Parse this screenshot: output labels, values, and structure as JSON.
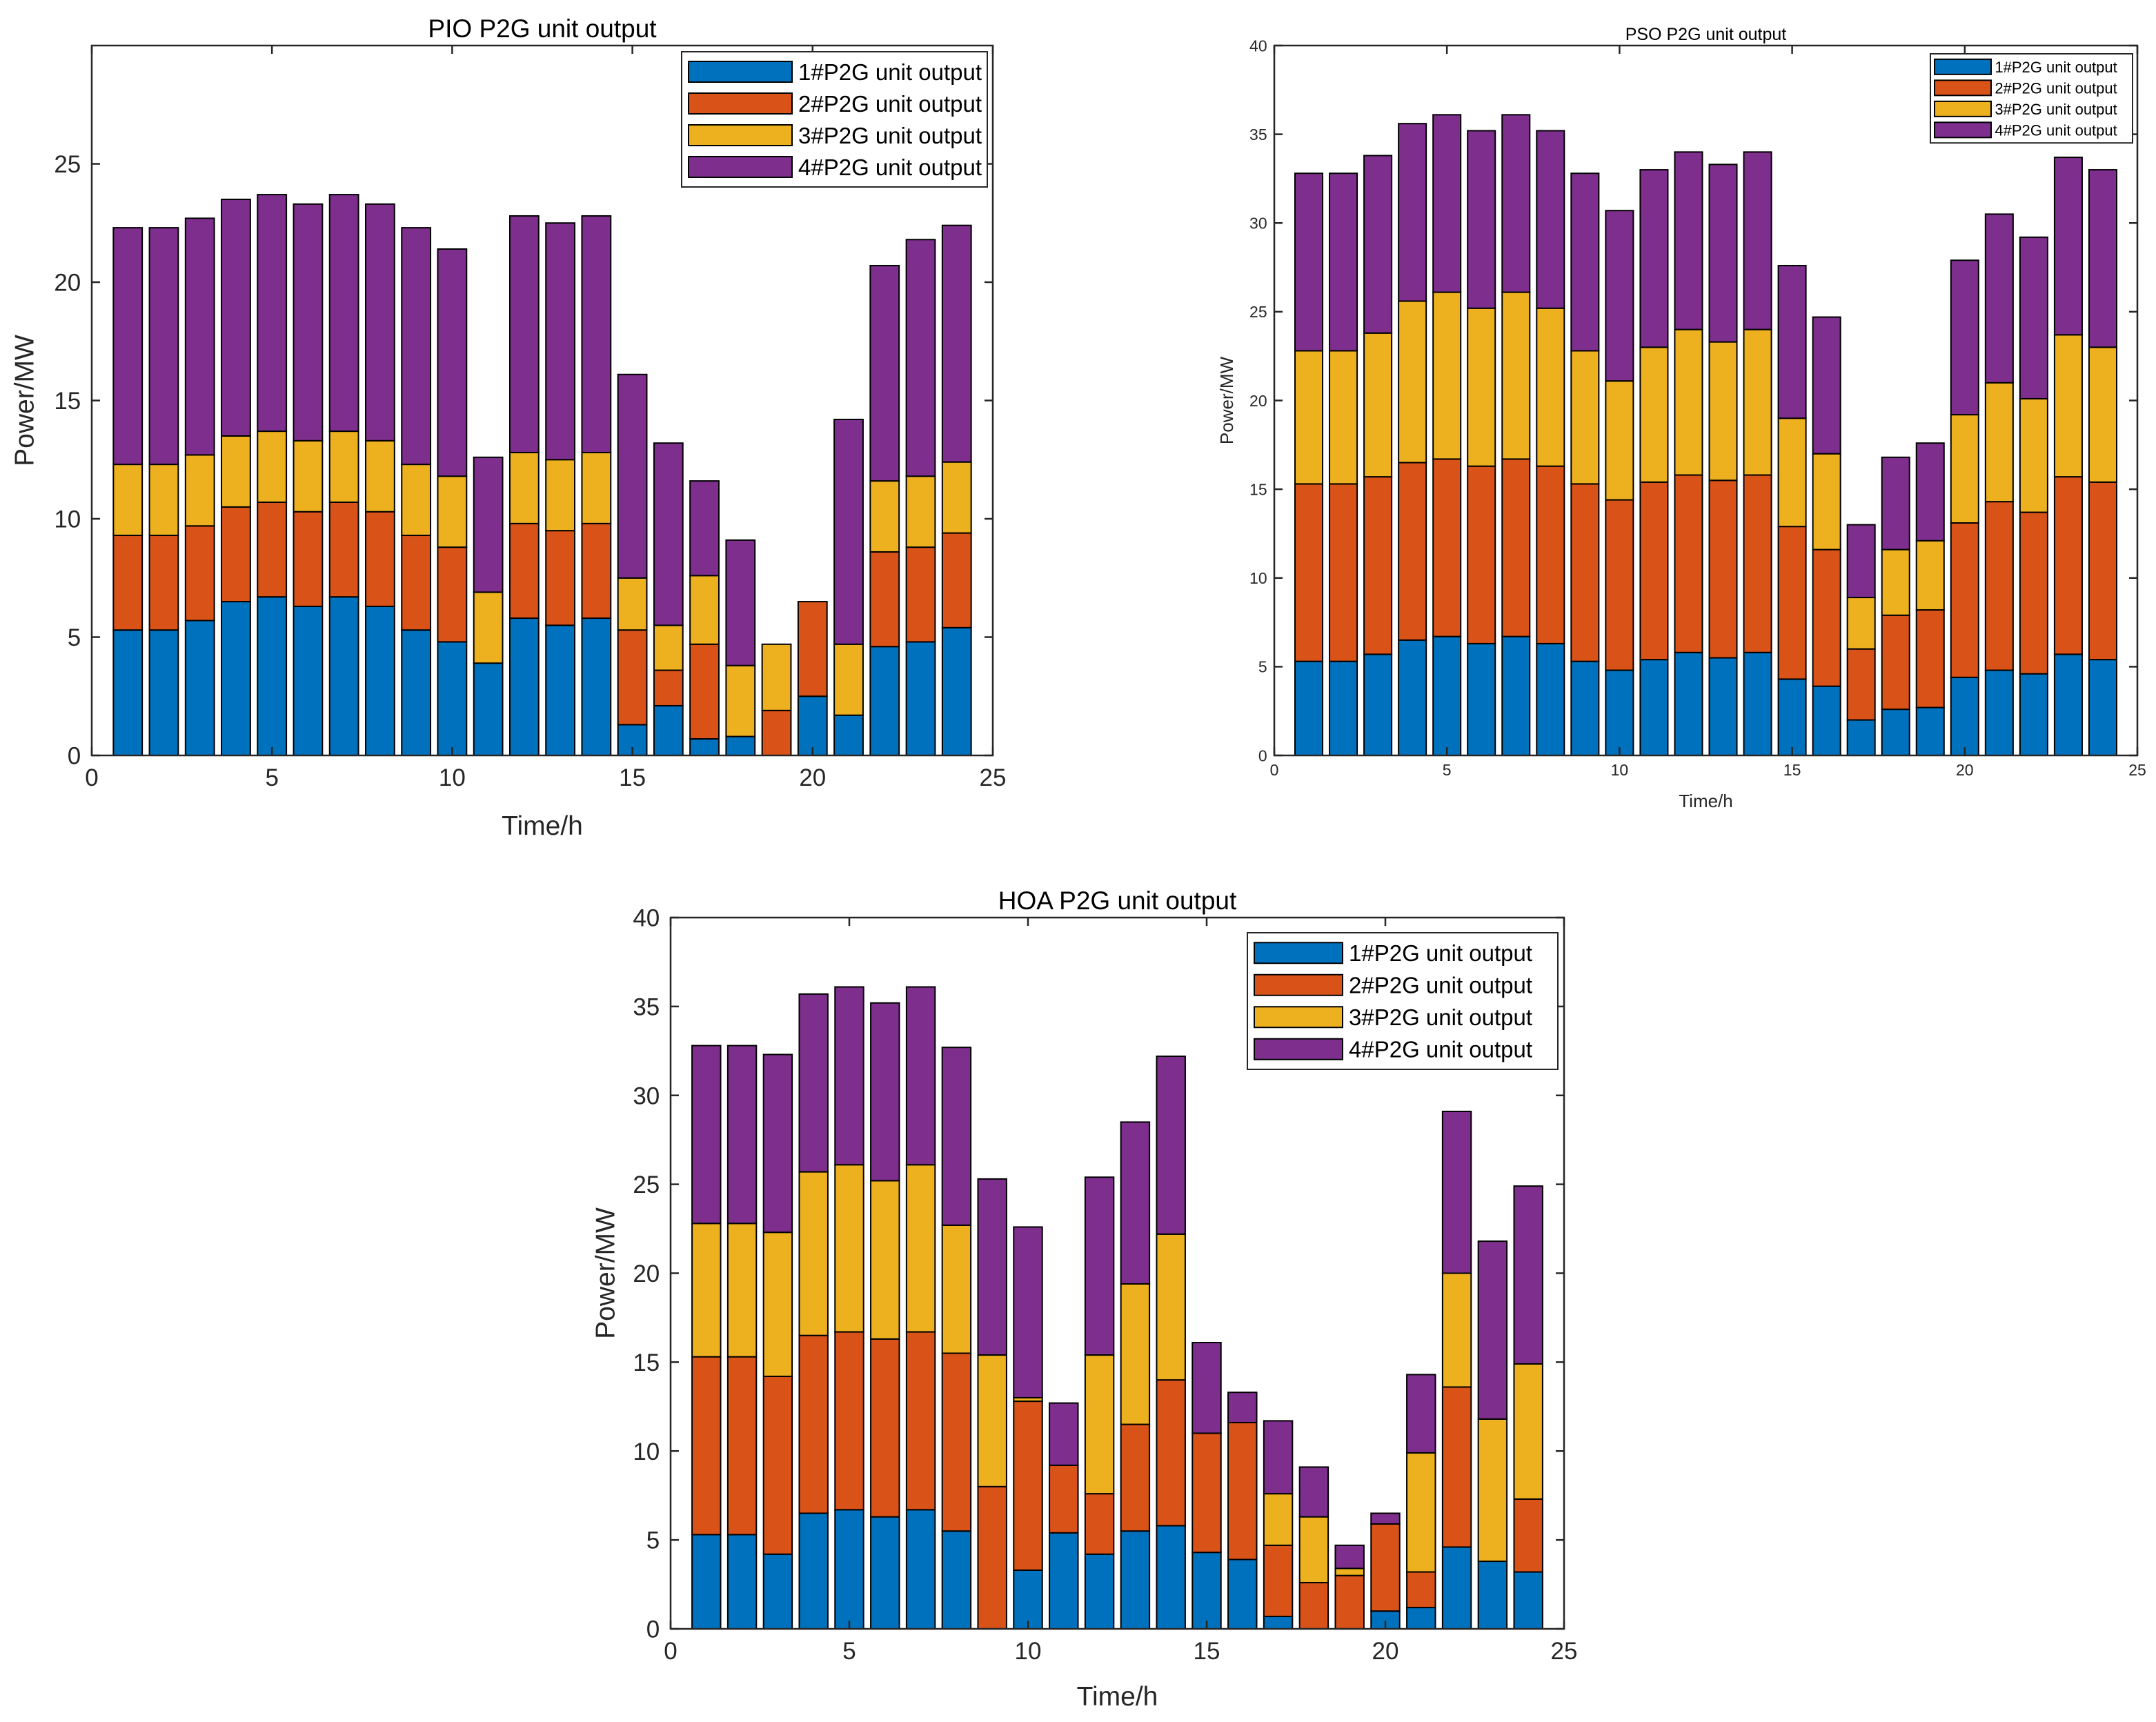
{
  "chart_data": [
    {
      "type": "bar",
      "stacked": true,
      "title": "PIO P2G unit output",
      "xlabel": "Time/h",
      "ylabel": "Power/MW",
      "xlim": [
        0,
        25
      ],
      "ylim": [
        0,
        30
      ],
      "xticks": [
        "0",
        "5",
        "10",
        "15",
        "20",
        "25"
      ],
      "yticks": [
        "0",
        "5",
        "10",
        "15",
        "20",
        "25"
      ],
      "legend_position": "top-right",
      "x": [
        1,
        2,
        3,
        4,
        5,
        6,
        7,
        8,
        9,
        10,
        11,
        12,
        13,
        14,
        15,
        16,
        17,
        18,
        19,
        20,
        21,
        22,
        23,
        24
      ],
      "series": [
        {
          "name": "1#P2G unit output",
          "color": "#0072BD",
          "values": [
            5.3,
            5.3,
            5.7,
            6.5,
            6.7,
            6.3,
            6.7,
            6.3,
            5.3,
            4.8,
            3.9,
            5.8,
            5.5,
            5.8,
            1.3,
            2.1,
            0.7,
            0.8,
            0.0,
            2.5,
            1.7,
            4.6,
            4.8,
            5.4
          ]
        },
        {
          "name": "2#P2G unit output",
          "color": "#D95319",
          "values": [
            4.0,
            4.0,
            4.0,
            4.0,
            4.0,
            4.0,
            4.0,
            4.0,
            4.0,
            4.0,
            0.0,
            4.0,
            4.0,
            4.0,
            4.0,
            1.5,
            4.0,
            0.0,
            1.9,
            4.0,
            0.0,
            4.0,
            4.0,
            4.0
          ]
        },
        {
          "name": "3#P2G unit output",
          "color": "#EDB120",
          "values": [
            3.0,
            3.0,
            3.0,
            3.0,
            3.0,
            3.0,
            3.0,
            3.0,
            3.0,
            3.0,
            3.0,
            3.0,
            3.0,
            3.0,
            2.2,
            1.9,
            2.9,
            3.0,
            2.8,
            0.0,
            3.0,
            3.0,
            3.0,
            3.0
          ]
        },
        {
          "name": "4#P2G unit output",
          "color": "#7E2F8E",
          "values": [
            10.0,
            10.0,
            10.0,
            10.0,
            10.0,
            10.0,
            10.0,
            10.0,
            10.0,
            9.6,
            5.7,
            10.0,
            10.0,
            10.0,
            8.6,
            7.7,
            4.0,
            5.3,
            0.0,
            0.0,
            9.5,
            9.1,
            10.0,
            10.0
          ]
        }
      ]
    },
    {
      "type": "bar",
      "stacked": true,
      "title": "PSO P2G unit output",
      "xlabel": "Time/h",
      "ylabel": "Power/MW",
      "xlim": [
        0,
        25
      ],
      "ylim": [
        0,
        40
      ],
      "xticks": [
        "0",
        "5",
        "10",
        "15",
        "20",
        "25"
      ],
      "yticks": [
        "0",
        "5",
        "10",
        "15",
        "20",
        "25",
        "30",
        "35",
        "40"
      ],
      "legend_position": "top-right",
      "x": [
        1,
        2,
        3,
        4,
        5,
        6,
        7,
        8,
        9,
        10,
        11,
        12,
        13,
        14,
        15,
        16,
        17,
        18,
        19,
        20,
        21,
        22,
        23,
        24
      ],
      "series": [
        {
          "name": "1#P2G unit output",
          "color": "#0072BD",
          "values": [
            5.3,
            5.3,
            5.7,
            6.5,
            6.7,
            6.3,
            6.7,
            6.3,
            5.3,
            4.8,
            5.4,
            5.8,
            5.5,
            5.8,
            4.3,
            3.9,
            2.0,
            2.6,
            2.7,
            4.4,
            4.8,
            4.6,
            5.7,
            5.4
          ]
        },
        {
          "name": "2#P2G unit output",
          "color": "#D95319",
          "values": [
            10.0,
            10.0,
            10.0,
            10.0,
            10.0,
            10.0,
            10.0,
            10.0,
            10.0,
            9.6,
            10.0,
            10.0,
            10.0,
            10.0,
            8.6,
            7.7,
            4.0,
            5.3,
            5.5,
            8.7,
            9.5,
            9.1,
            10.0,
            10.0
          ]
        },
        {
          "name": "3#P2G unit output",
          "color": "#EDB120",
          "values": [
            7.5,
            7.5,
            8.1,
            9.1,
            9.4,
            8.9,
            9.4,
            8.9,
            7.5,
            6.7,
            7.6,
            8.2,
            7.8,
            8.2,
            6.1,
            5.4,
            2.9,
            3.7,
            3.9,
            6.1,
            6.7,
            6.4,
            8.0,
            7.6
          ]
        },
        {
          "name": "4#P2G unit output",
          "color": "#7E2F8E",
          "values": [
            10.0,
            10.0,
            10.0,
            10.0,
            10.0,
            10.0,
            10.0,
            10.0,
            10.0,
            9.6,
            10.0,
            10.0,
            10.0,
            10.0,
            8.6,
            7.7,
            4.1,
            5.2,
            5.5,
            8.7,
            9.5,
            9.1,
            10.0,
            10.0
          ]
        }
      ]
    },
    {
      "type": "bar",
      "stacked": true,
      "title": "HOA P2G unit output",
      "xlabel": "Time/h",
      "ylabel": "Power/MW",
      "xlim": [
        0,
        25
      ],
      "ylim": [
        0,
        40
      ],
      "xticks": [
        "0",
        "5",
        "10",
        "15",
        "20",
        "25"
      ],
      "yticks": [
        "0",
        "5",
        "10",
        "15",
        "20",
        "25",
        "30",
        "35",
        "40"
      ],
      "legend_position": "top-right",
      "x": [
        1,
        2,
        3,
        4,
        5,
        6,
        7,
        8,
        9,
        10,
        11,
        12,
        13,
        14,
        15,
        16,
        17,
        18,
        19,
        20,
        21,
        22,
        23,
        24
      ],
      "series": [
        {
          "name": "1#P2G unit output",
          "color": "#0072BD",
          "values": [
            5.3,
            5.3,
            4.2,
            6.5,
            6.7,
            6.3,
            6.7,
            5.5,
            0.0,
            3.3,
            5.4,
            4.2,
            5.5,
            5.8,
            4.3,
            3.9,
            0.7,
            0.0,
            0.0,
            1.0,
            1.2,
            4.6,
            3.8,
            3.2
          ]
        },
        {
          "name": "2#P2G unit output",
          "color": "#D95319",
          "values": [
            10.0,
            10.0,
            10.0,
            10.0,
            10.0,
            10.0,
            10.0,
            10.0,
            8.0,
            9.5,
            3.8,
            3.4,
            6.0,
            8.2,
            6.7,
            7.7,
            4.0,
            2.6,
            3.0,
            4.9,
            2.0,
            9.0,
            0.0,
            4.1
          ]
        },
        {
          "name": "3#P2G unit output",
          "color": "#EDB120",
          "values": [
            7.5,
            7.5,
            8.1,
            9.2,
            9.4,
            8.9,
            9.4,
            7.2,
            7.4,
            0.2,
            0.0,
            7.8,
            7.9,
            8.2,
            0.0,
            0.0,
            2.9,
            3.7,
            0.4,
            0.0,
            6.7,
            6.4,
            8.0,
            7.6
          ]
        },
        {
          "name": "4#P2G unit output",
          "color": "#7E2F8E",
          "values": [
            10.0,
            10.0,
            10.0,
            10.0,
            10.0,
            10.0,
            10.0,
            10.0,
            9.9,
            9.6,
            3.5,
            10.0,
            9.1,
            10.0,
            5.1,
            1.7,
            4.1,
            2.8,
            1.3,
            0.6,
            4.4,
            9.1,
            10.0,
            10.0
          ]
        }
      ]
    }
  ]
}
